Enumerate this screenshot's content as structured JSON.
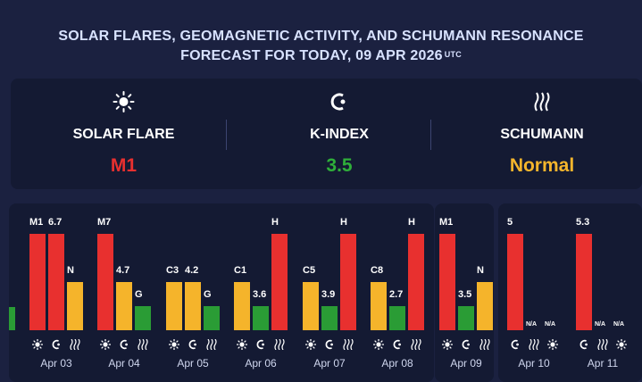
{
  "header": {
    "line1": "SOLAR FLARES, GEOMAGNETIC ACTIVITY, AND SCHUMANN RESONANCE",
    "line2": "FORECAST FOR TODAY, 09 APR 2026",
    "tz": "UTC"
  },
  "summary": [
    {
      "label": "SOLAR FLARE",
      "value": "M1",
      "icon": "sun-icon",
      "color": "#e8302f"
    },
    {
      "label": "K-INDEX",
      "value": "3.5",
      "icon": "moon-icon",
      "color": "#2fae3a"
    },
    {
      "label": "SCHUMANN",
      "value": "Normal",
      "icon": "wave-icon",
      "color": "#f5b52c"
    }
  ],
  "colors": {
    "red": "#e8302f",
    "yellow": "#f5b42b",
    "green": "#2a9c35"
  },
  "days": [
    {
      "date": "Apr 03",
      "bars": [
        {
          "type": "flare",
          "label": "M1",
          "color": "red",
          "level": 1.0
        },
        {
          "type": "kindex",
          "label": "6.7",
          "color": "red",
          "level": 1.0
        },
        {
          "type": "schumann",
          "label": "N",
          "color": "yellow",
          "level": 0.5
        }
      ]
    },
    {
      "date": "Apr 04",
      "bars": [
        {
          "type": "flare",
          "label": "M7",
          "color": "red",
          "level": 1.0
        },
        {
          "type": "kindex",
          "label": "4.7",
          "color": "yellow",
          "level": 0.5
        },
        {
          "type": "schumann",
          "label": "G",
          "color": "green",
          "level": 0.25
        }
      ]
    },
    {
      "date": "Apr 05",
      "bars": [
        {
          "type": "flare",
          "label": "C3",
          "color": "yellow",
          "level": 0.5
        },
        {
          "type": "kindex",
          "label": "4.2",
          "color": "yellow",
          "level": 0.5
        },
        {
          "type": "schumann",
          "label": "G",
          "color": "green",
          "level": 0.25
        }
      ]
    },
    {
      "date": "Apr 06",
      "bars": [
        {
          "type": "flare",
          "label": "C1",
          "color": "yellow",
          "level": 0.5
        },
        {
          "type": "kindex",
          "label": "3.6",
          "color": "green",
          "level": 0.25
        },
        {
          "type": "schumann",
          "label": "H",
          "color": "red",
          "level": 1.0
        }
      ]
    },
    {
      "date": "Apr 07",
      "bars": [
        {
          "type": "flare",
          "label": "C5",
          "color": "yellow",
          "level": 0.5
        },
        {
          "type": "kindex",
          "label": "3.9",
          "color": "green",
          "level": 0.25
        },
        {
          "type": "schumann",
          "label": "H",
          "color": "red",
          "level": 1.0
        }
      ]
    },
    {
      "date": "Apr 08",
      "bars": [
        {
          "type": "flare",
          "label": "C8",
          "color": "yellow",
          "level": 0.5
        },
        {
          "type": "kindex",
          "label": "2.7",
          "color": "green",
          "level": 0.25
        },
        {
          "type": "schumann",
          "label": "H",
          "color": "red",
          "level": 1.0
        }
      ]
    },
    {
      "date": "Apr 09",
      "bars": [
        {
          "type": "flare",
          "label": "M1",
          "color": "red",
          "level": 1.0
        },
        {
          "type": "kindex",
          "label": "3.5",
          "color": "green",
          "level": 0.25
        },
        {
          "type": "schumann",
          "label": "N",
          "color": "yellow",
          "level": 0.5
        }
      ]
    },
    {
      "date": "Apr 10",
      "bars": [
        {
          "type": "kindex",
          "label": "5",
          "color": "red",
          "level": 1.0
        },
        {
          "type": "schumann",
          "label": "N/A",
          "color": "none",
          "level": 0
        },
        {
          "type": "flare",
          "label": "N/A",
          "color": "none",
          "level": 0
        }
      ]
    },
    {
      "date": "Apr 11",
      "bars": [
        {
          "type": "kindex",
          "label": "5.3",
          "color": "red",
          "level": 1.0
        },
        {
          "type": "schumann",
          "label": "N/A",
          "color": "none",
          "level": 0
        },
        {
          "type": "flare",
          "label": "N/A",
          "color": "none",
          "level": 0
        }
      ]
    }
  ]
}
